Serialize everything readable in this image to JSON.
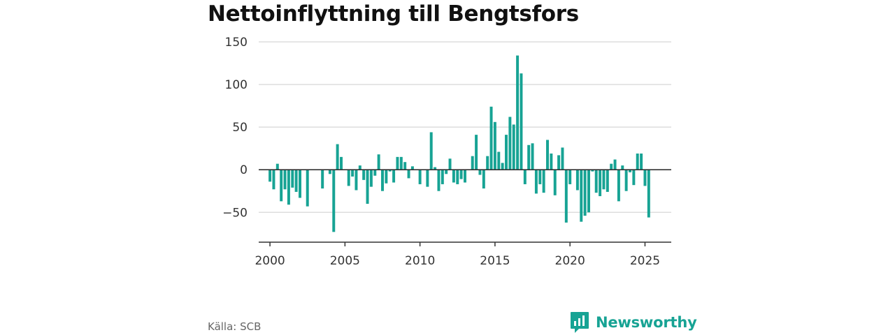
{
  "title": "Nettoinflyttning till Bengtsfors",
  "source": "Källa: SCB",
  "brand": {
    "name": "Newsworthy",
    "icon": "bar-chart-speech-bubble-icon"
  },
  "colors": {
    "bar": "#17a394",
    "grid": "#dddddd",
    "axis": "#333333",
    "brand": "#17a394"
  },
  "chart_data": {
    "type": "bar",
    "title": "Nettoinflyttning till Bengtsfors",
    "xlabel": "",
    "ylabel": "",
    "ylim": [
      -85,
      150
    ],
    "xlim": [
      1999.25,
      2026.75
    ],
    "yticks": [
      150,
      100,
      50,
      0,
      -50
    ],
    "ytick_labels": [
      "150",
      "100",
      "50",
      "0",
      "−50"
    ],
    "xticks": [
      2000,
      2005,
      2010,
      2015,
      2020,
      2025
    ],
    "xtick_labels": [
      "2000",
      "2005",
      "2010",
      "2015",
      "2020",
      "2025"
    ],
    "grid": true,
    "series": [
      {
        "x": [
          "2000 Q1",
          "2000 Q2",
          "2000 Q3",
          "2000 Q4",
          "2001 Q1",
          "2001 Q2",
          "2001 Q3",
          "2001 Q4",
          "2002 Q1",
          "2002 Q2",
          "2002 Q3",
          "2002 Q4",
          "2003 Q1",
          "2003 Q2",
          "2003 Q3",
          "2003 Q4",
          "2004 Q1",
          "2004 Q2",
          "2004 Q3",
          "2004 Q4",
          "2005 Q1",
          "2005 Q2",
          "2005 Q3",
          "2005 Q4",
          "2006 Q1",
          "2006 Q2",
          "2006 Q3",
          "2006 Q4",
          "2007 Q1",
          "2007 Q2",
          "2007 Q3",
          "2007 Q4",
          "2008 Q1",
          "2008 Q2",
          "2008 Q3",
          "2008 Q4",
          "2009 Q1",
          "2009 Q2",
          "2009 Q3",
          "2009 Q4",
          "2010 Q1",
          "2010 Q2",
          "2010 Q3",
          "2010 Q4",
          "2011 Q1",
          "2011 Q2",
          "2011 Q3",
          "2011 Q4",
          "2012 Q1",
          "2012 Q2",
          "2012 Q3",
          "2012 Q4",
          "2013 Q1",
          "2013 Q2",
          "2013 Q3",
          "2013 Q4",
          "2014 Q1",
          "2014 Q2",
          "2014 Q3",
          "2014 Q4",
          "2015 Q1",
          "2015 Q2",
          "2015 Q3",
          "2015 Q4",
          "2016 Q1",
          "2016 Q2",
          "2016 Q3",
          "2016 Q4",
          "2017 Q1",
          "2017 Q2",
          "2017 Q3",
          "2017 Q4",
          "2018 Q1",
          "2018 Q2",
          "2018 Q3",
          "2018 Q4",
          "2019 Q1",
          "2019 Q2",
          "2019 Q3",
          "2019 Q4",
          "2020 Q1",
          "2020 Q2",
          "2020 Q3",
          "2020 Q4",
          "2021 Q1",
          "2021 Q2",
          "2021 Q3",
          "2021 Q4",
          "2022 Q1",
          "2022 Q2",
          "2022 Q3",
          "2022 Q4",
          "2023 Q1",
          "2023 Q2",
          "2023 Q3",
          "2023 Q4",
          "2024 Q1",
          "2024 Q2",
          "2024 Q3",
          "2024 Q4",
          "2025 Q1",
          "2025 Q2"
        ],
        "values": [
          -14,
          -23,
          7,
          -37,
          -23,
          -41,
          -21,
          -26,
          -33,
          0,
          -43,
          0,
          0,
          0,
          -22,
          0,
          -5,
          -73,
          30,
          15,
          0,
          -19,
          -8,
          -24,
          5,
          -12,
          -40,
          -20,
          -7,
          18,
          -25,
          -16,
          -2,
          -15,
          15,
          15,
          9,
          -10,
          4,
          0,
          -17,
          0,
          -20,
          44,
          3,
          -25,
          -17,
          -5,
          13,
          -15,
          -17,
          -11,
          -15,
          0,
          16,
          41,
          -6,
          -22,
          16,
          74,
          56,
          21,
          8,
          41,
          62,
          53,
          134,
          113,
          -17,
          29,
          31,
          -28,
          -17,
          -27,
          35,
          19,
          -30,
          17,
          26,
          -62,
          -17,
          0,
          -24,
          -61,
          -54,
          -50,
          -2,
          -27,
          -31,
          -23,
          -26,
          7,
          12,
          -37,
          5,
          -25,
          -3,
          -18,
          19,
          19,
          -19,
          -56
        ]
      }
    ]
  }
}
